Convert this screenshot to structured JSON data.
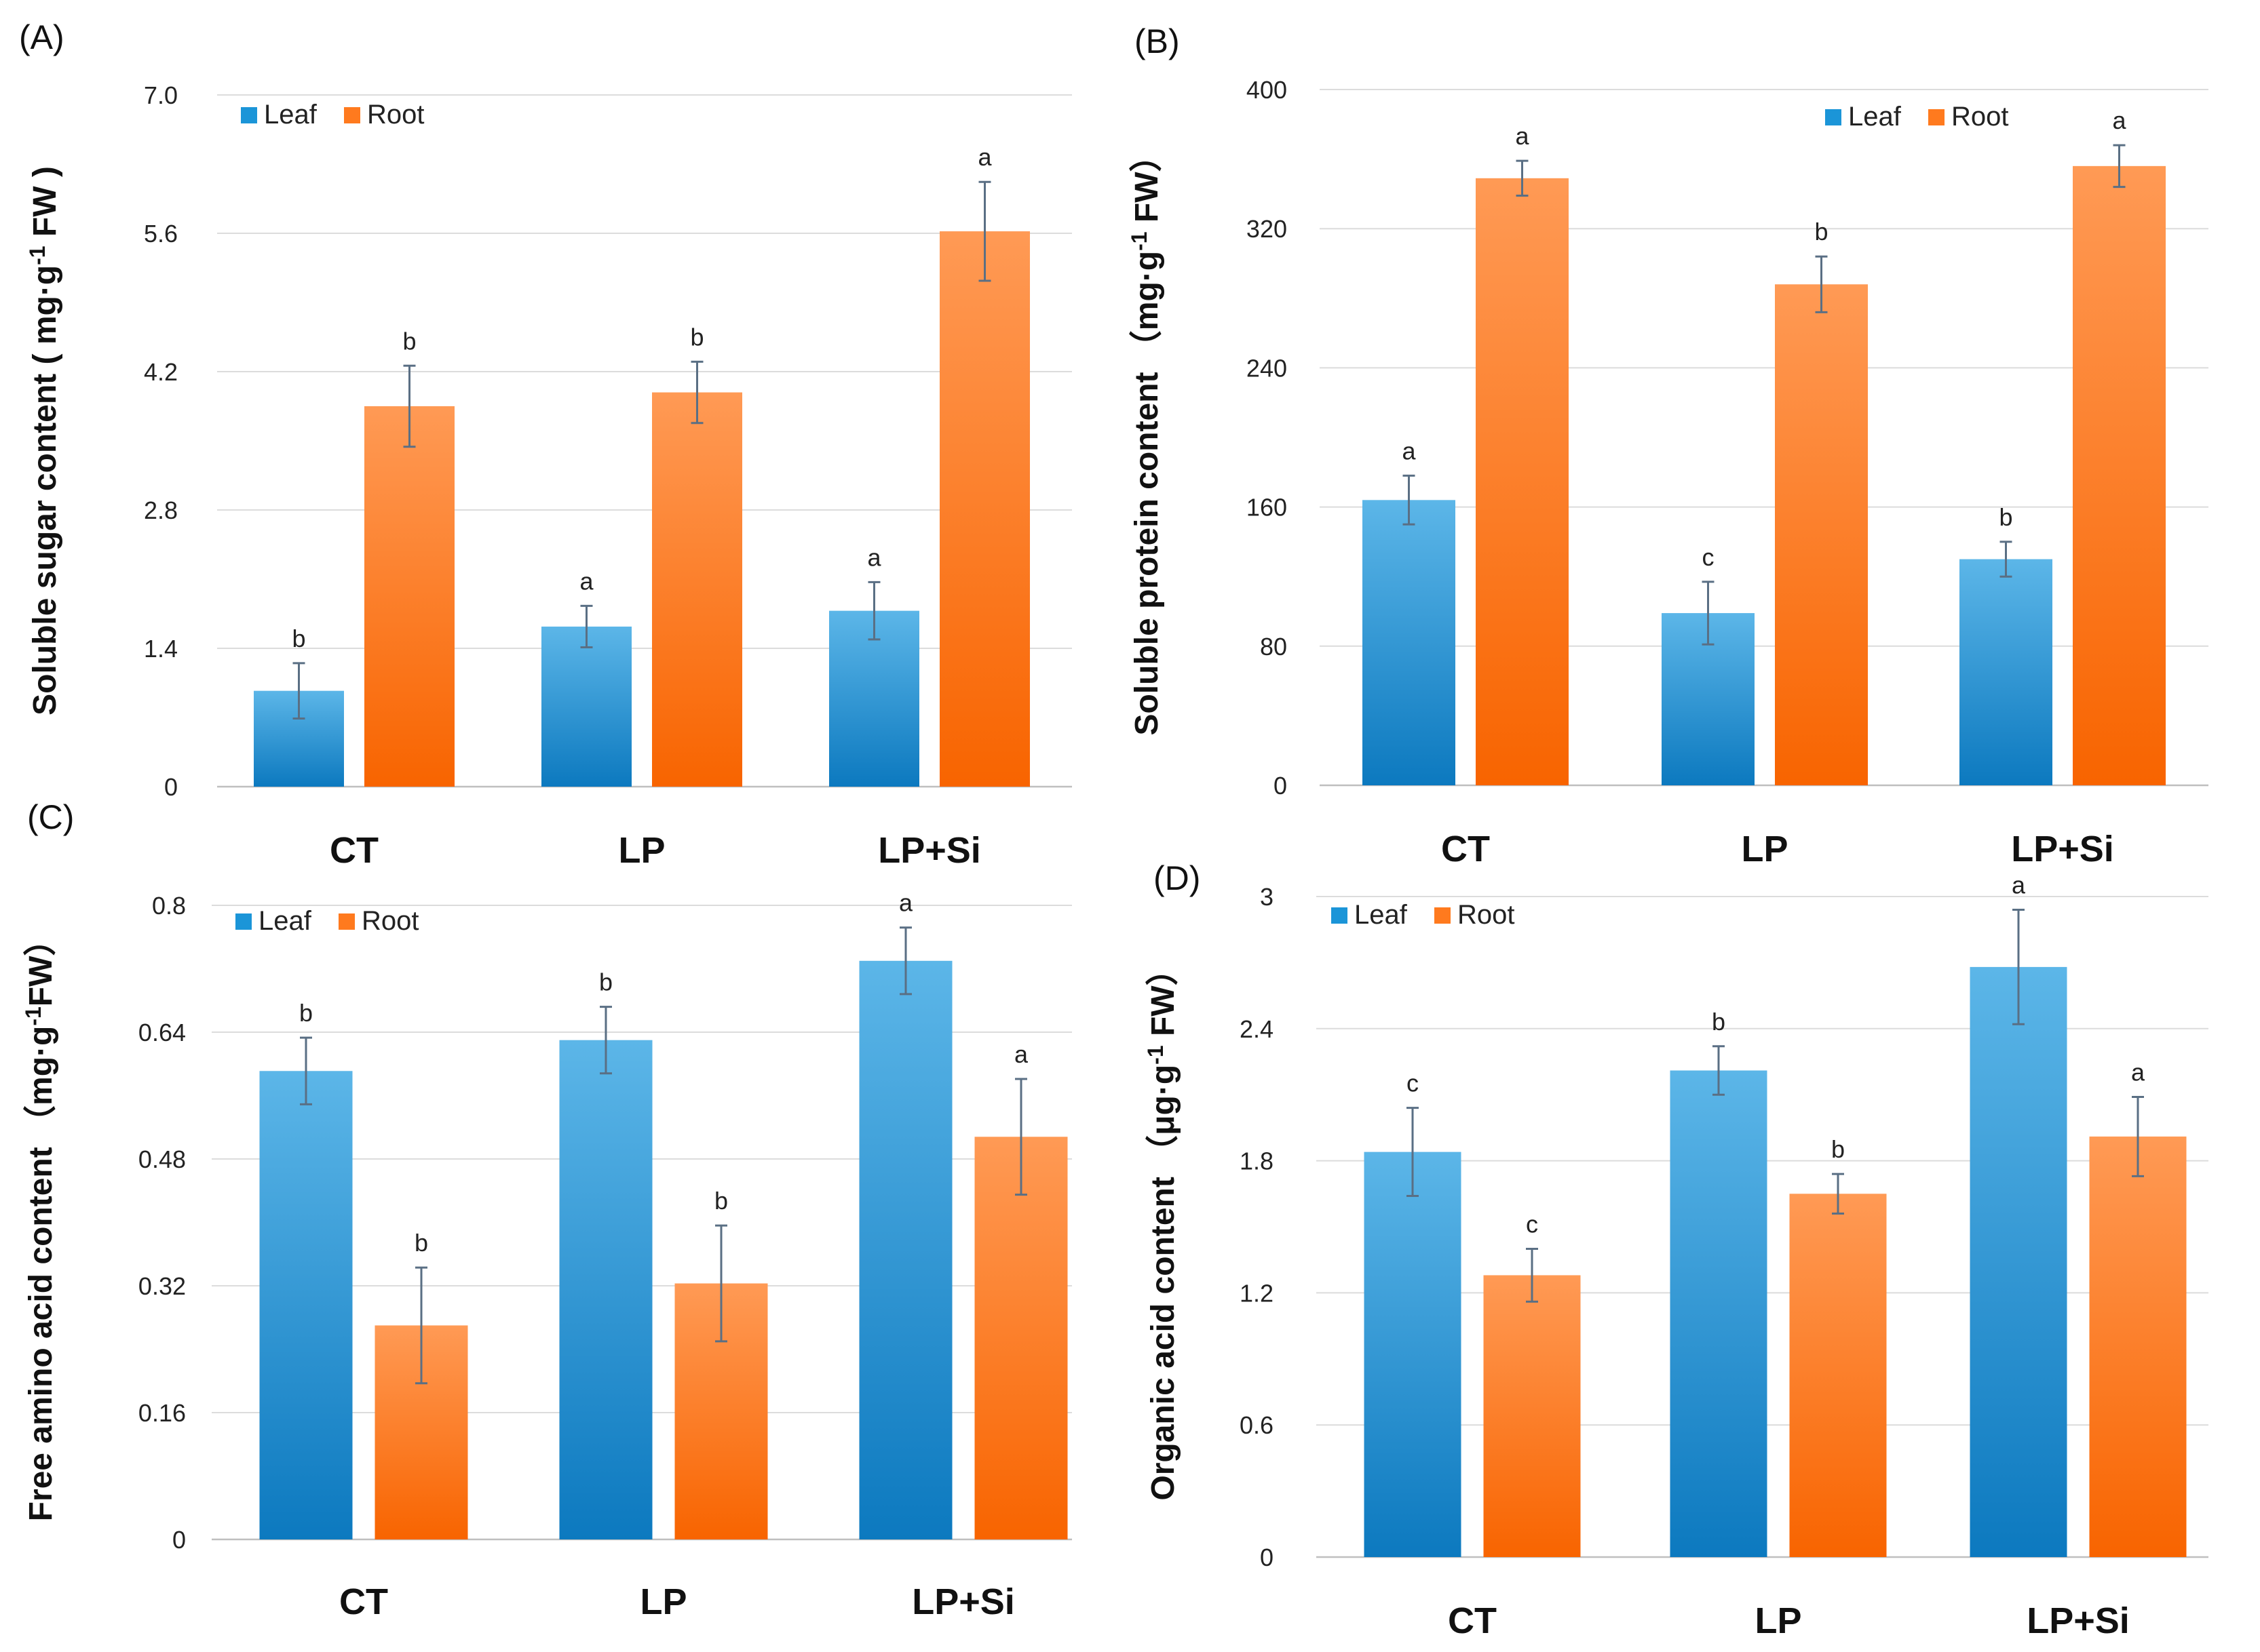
{
  "colors": {
    "leaf": "#1B95D8",
    "leaf_light": "#5CB6E8",
    "leaf_dark": "#0C79BF",
    "root": "#FF7A1E",
    "root_light": "#FF9A55",
    "root_dark": "#F86400"
  },
  "chart_data": [
    {
      "type": "bar",
      "panel": "(A)",
      "ylabel": "Soluble sugar content ( mg·g-1 FW )",
      "ylabel_parts": {
        "pre": "Soluble sugar content ( mg·g",
        "sup": "-1",
        "post": " FW )"
      },
      "categories": [
        "CT",
        "LP",
        "LP+Si"
      ],
      "yticks": [
        "0",
        "1.4",
        "2.8",
        "4.2",
        "5.6",
        "7.0"
      ],
      "ylim": [
        0,
        7.0
      ],
      "legend": {
        "position": "top-left",
        "labels": [
          "Leaf",
          "Root"
        ]
      },
      "series": [
        {
          "name": "Leaf",
          "values": [
            0.97,
            1.62,
            1.78
          ],
          "errors": [
            0.28,
            0.21,
            0.29
          ],
          "letters": [
            "b",
            "a",
            "a"
          ]
        },
        {
          "name": "Root",
          "values": [
            3.85,
            3.99,
            5.62
          ],
          "errors": [
            0.41,
            0.31,
            0.5
          ],
          "letters": [
            "b",
            "b",
            "a"
          ]
        }
      ]
    },
    {
      "type": "bar",
      "panel": "(B)",
      "ylabel": "Soluble protein content （mg·g-1 FW）",
      "ylabel_parts": {
        "pre": "Soluble protein content （mg·g",
        "sup": "-1",
        "post": " FW）"
      },
      "categories": [
        "CT",
        "LP",
        "LP+Si"
      ],
      "yticks": [
        "0",
        "80",
        "160",
        "240",
        "320",
        "400"
      ],
      "ylim": [
        0,
        400
      ],
      "legend": {
        "position": "top-right",
        "labels": [
          "Leaf",
          "Root"
        ]
      },
      "series": [
        {
          "name": "Leaf",
          "values": [
            164,
            99,
            130
          ],
          "errors": [
            14,
            18,
            10
          ],
          "letters": [
            "a",
            "c",
            "b"
          ]
        },
        {
          "name": "Root",
          "values": [
            349,
            288,
            356
          ],
          "errors": [
            10,
            16,
            12
          ],
          "letters": [
            "a",
            "b",
            "a"
          ]
        }
      ]
    },
    {
      "type": "bar",
      "panel": "(C)",
      "ylabel": "Free amino acid content （mg·g-1FW）",
      "ylabel_parts": {
        "pre": "Free amino acid content （mg·g",
        "sup": "-1",
        "post": "FW）"
      },
      "categories": [
        "CT",
        "LP",
        "LP+Si"
      ],
      "yticks": [
        "0",
        "0.16",
        "0.32",
        "0.48",
        "0.64",
        "0.8"
      ],
      "ylim": [
        0,
        0.8
      ],
      "legend": {
        "position": "top-left",
        "labels": [
          "Leaf",
          "Root"
        ]
      },
      "series": [
        {
          "name": "Leaf",
          "values": [
            0.591,
            0.63,
            0.73
          ],
          "errors": [
            0.042,
            0.042,
            0.042
          ],
          "letters": [
            "b",
            "b",
            "a"
          ]
        },
        {
          "name": "Root",
          "values": [
            0.27,
            0.323,
            0.508
          ],
          "errors": [
            0.073,
            0.073,
            0.073
          ],
          "letters": [
            "b",
            "b",
            "a"
          ]
        }
      ]
    },
    {
      "type": "bar",
      "panel": "(D)",
      "ylabel": "Organic acid content （μg·g-1 FW）",
      "ylabel_parts": {
        "pre": "Organic acid content （μg·g",
        "sup": "-1",
        "post": " FW）"
      },
      "categories": [
        "CT",
        "LP",
        "LP+Si"
      ],
      "yticks": [
        "0",
        "0.6",
        "1.2",
        "1.8",
        "2.4",
        "3"
      ],
      "ylim": [
        0,
        3.0
      ],
      "legend": {
        "position": "top-left",
        "labels": [
          "Leaf",
          "Root"
        ]
      },
      "series": [
        {
          "name": "Leaf",
          "values": [
            1.84,
            2.21,
            2.68
          ],
          "errors": [
            0.2,
            0.11,
            0.26
          ],
          "letters": [
            "c",
            "b",
            "a"
          ]
        },
        {
          "name": "Root",
          "values": [
            1.28,
            1.65,
            1.91
          ],
          "errors": [
            0.12,
            0.09,
            0.18
          ],
          "letters": [
            "c",
            "b",
            "a"
          ]
        }
      ]
    }
  ]
}
